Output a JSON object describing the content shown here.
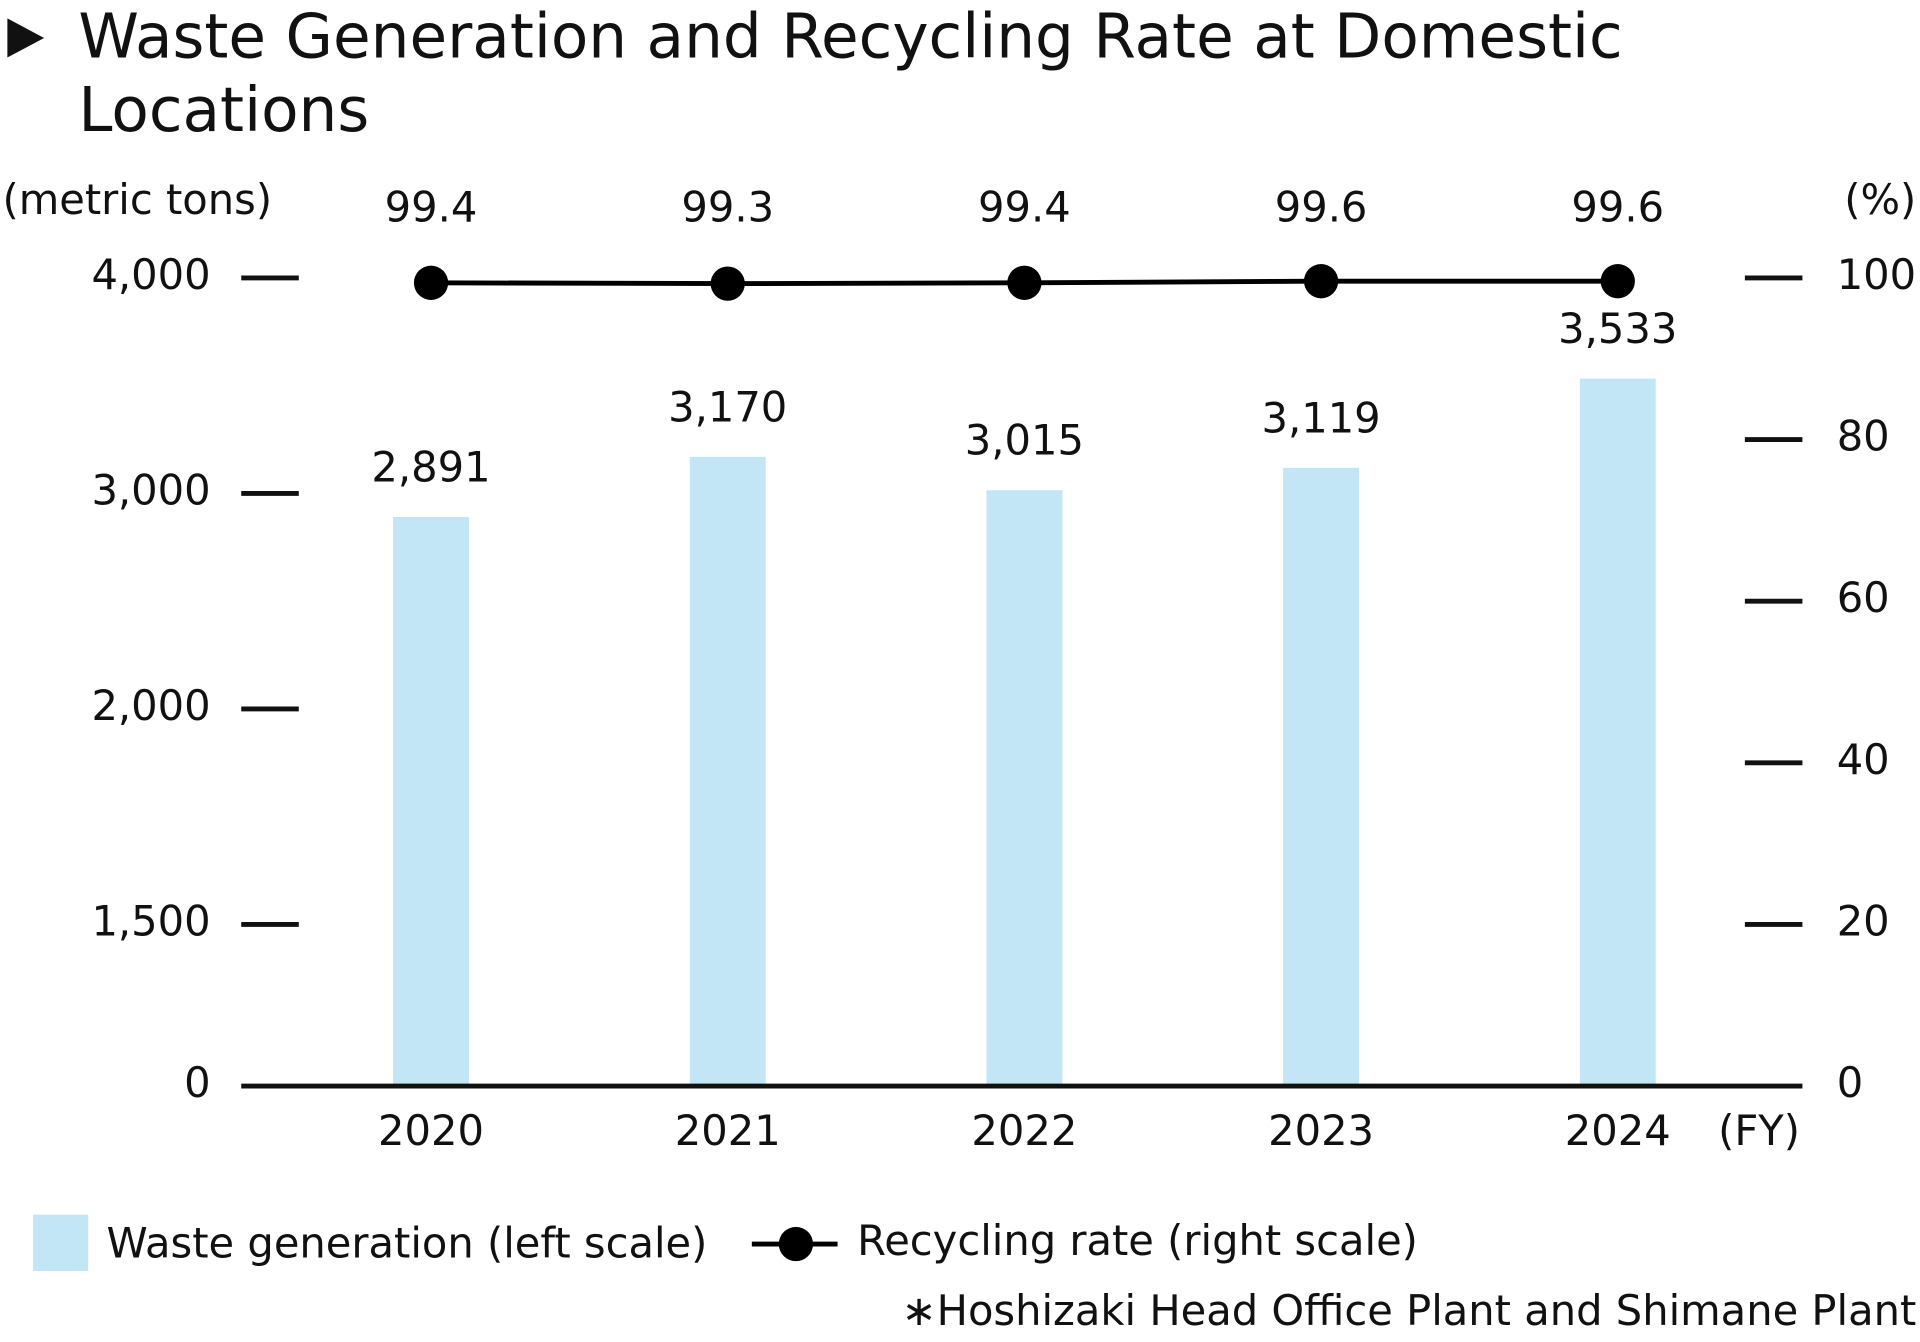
{
  "chart_data": {
    "type": "bar-line",
    "title": "Waste Generation and Recycling Rate at Domestic Locations",
    "y_label": "(metric tons)",
    "y2_label": "(%)",
    "x_label": "(FY)",
    "categories": [
      "2020",
      "2021",
      "2022",
      "2023",
      "2024"
    ],
    "series": [
      {
        "name": "Waste generation (left scale)",
        "type": "bar",
        "color": "#c2e6f6",
        "axis": "y",
        "values": [
          2891,
          3170,
          3015,
          3119,
          3533
        ],
        "value_labels": [
          "2,891",
          "3,170",
          "3,015",
          "3,119",
          "3,533"
        ]
      },
      {
        "name": "Recycling rate (right scale)",
        "type": "line",
        "color": "#000000",
        "axis": "y2",
        "values": [
          99.4,
          99.3,
          99.4,
          99.6,
          99.6
        ]
      }
    ],
    "ylim": [
      0,
      4000
    ],
    "yticks": [
      0,
      {
        "value": 1500,
        "label": "1,500"
      },
      {
        "value": 2000,
        "label": "2,000"
      },
      {
        "value": 3000,
        "label": "3,000"
      },
      {
        "value": 4000,
        "label": "4,000"
      }
    ],
    "y2lim": [
      0,
      100
    ],
    "y2ticks": [
      0,
      20,
      40,
      60,
      80,
      100
    ],
    "note": "∗Hoshizaki Head Office Plant and Shimane Plant"
  }
}
